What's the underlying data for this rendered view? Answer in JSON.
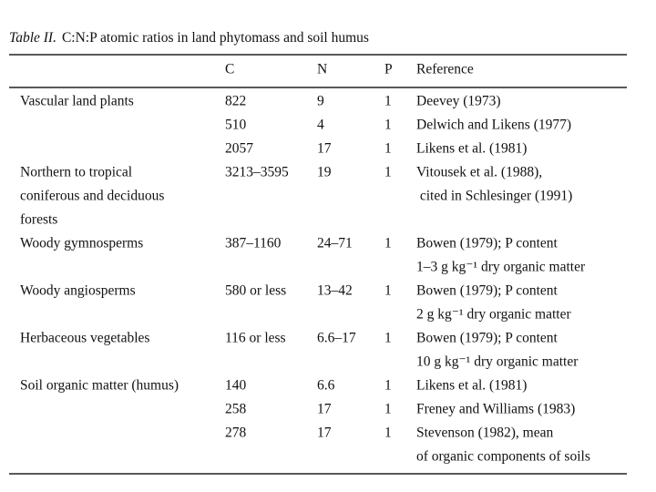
{
  "title": {
    "label": "Table II.",
    "text": "C:N:P atomic ratios in land phytomass and soil humus"
  },
  "table": {
    "columns": [
      "C",
      "N",
      "P",
      "Reference"
    ],
    "groups": [
      {
        "label": [
          "Vascular land plants"
        ],
        "entries": [
          {
            "c": "822",
            "n": "9",
            "p": "1",
            "ref": [
              "Deevey (1973)"
            ]
          },
          {
            "c": "510",
            "n": "4",
            "p": "1",
            "ref": [
              "Delwich and Likens (1977)"
            ]
          },
          {
            "c": "2057",
            "n": "17",
            "p": "1",
            "ref": [
              "Likens et al. (1981)"
            ]
          }
        ]
      },
      {
        "label": [
          "Northern to tropical",
          "coniferous and deciduous",
          "forests"
        ],
        "entries": [
          {
            "c": "3213–3595",
            "n": "19",
            "p": "1",
            "ref": [
              "Vitousek et al. (1988),",
              " cited in Schlesinger (1991)"
            ]
          }
        ]
      },
      {
        "label": [
          "Woody gymnosperms"
        ],
        "entries": [
          {
            "c": "387–1160",
            "n": "24–71",
            "p": "1",
            "ref": [
              "Bowen (1979); P content",
              "1–3 g kg⁻¹ dry organic matter"
            ]
          }
        ]
      },
      {
        "label": [
          "Woody angiosperms"
        ],
        "entries": [
          {
            "c": "580 or less",
            "n": "13–42",
            "p": "1",
            "ref": [
              "Bowen (1979); P content",
              "2 g kg⁻¹ dry organic matter"
            ]
          }
        ]
      },
      {
        "label": [
          "Herbaceous vegetables"
        ],
        "entries": [
          {
            "c": "116 or less",
            "n": "6.6–17",
            "p": "1",
            "ref": [
              "Bowen (1979); P content",
              "10 g kg⁻¹ dry organic matter"
            ]
          }
        ]
      },
      {
        "label": [
          "Soil organic matter (humus)"
        ],
        "entries": [
          {
            "c": "140",
            "n": "6.6",
            "p": "1",
            "ref": [
              "Likens et al. (1981)"
            ]
          },
          {
            "c": "258",
            "n": "17",
            "p": "1",
            "ref": [
              "Freney and Williams (1983)"
            ]
          },
          {
            "c": "278",
            "n": "17",
            "p": "1",
            "ref": [
              "Stevenson (1982), mean",
              "of organic components of soils"
            ]
          }
        ]
      }
    ]
  }
}
